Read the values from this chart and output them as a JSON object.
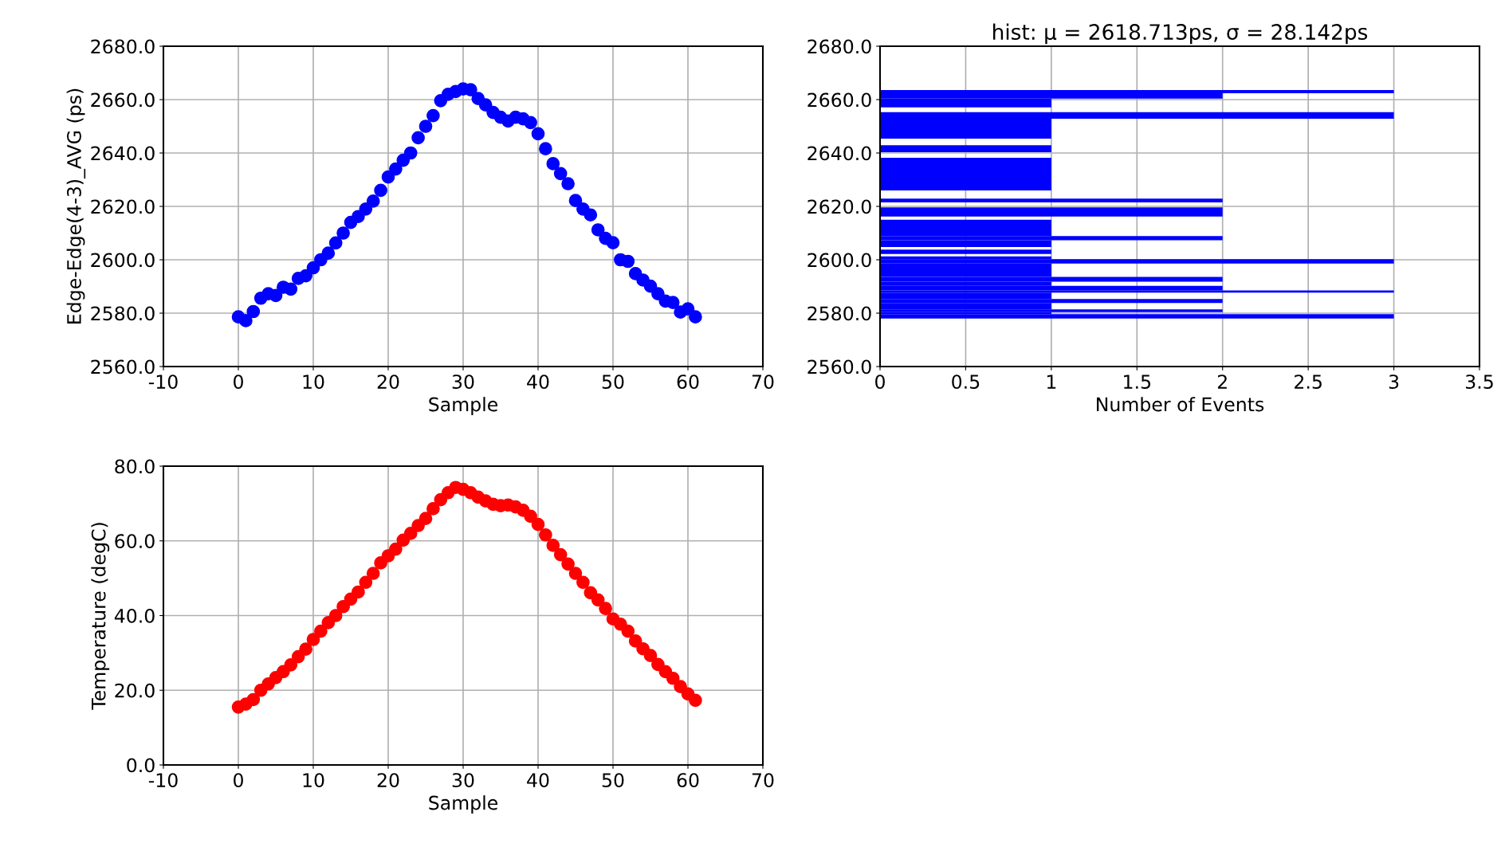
{
  "chart_data": [
    {
      "type": "scatter",
      "xlabel": "Sample",
      "ylabel": "Edge-Edge(4-3)_AVG (ps)",
      "marker": "circle",
      "grid": true,
      "xlim": [
        -10,
        70
      ],
      "xticks": [
        {
          "value": -10,
          "label": "-10"
        },
        0,
        10,
        20,
        30,
        40,
        50,
        60,
        70
      ],
      "ylim": [
        2560,
        2680
      ],
      "yticks": [
        {
          "value": 2560,
          "label": "2560.0"
        },
        {
          "value": 2580,
          "label": "2580.0"
        },
        {
          "value": 2600,
          "label": "2600.0"
        },
        {
          "value": 2620,
          "label": "2620.0"
        },
        {
          "value": 2640,
          "label": "2640.0"
        },
        {
          "value": 2660,
          "label": "2660.0"
        },
        {
          "value": 2680,
          "label": "2680.0"
        }
      ],
      "series": [
        {
          "color": "#0000ff",
          "x": [
            0,
            1,
            2,
            3,
            4,
            5,
            6,
            7,
            8,
            9,
            10,
            11,
            12,
            13,
            14,
            15,
            16,
            17,
            18,
            19,
            20,
            21,
            22,
            23,
            24,
            25,
            26,
            27,
            28,
            29,
            30,
            31,
            32,
            33,
            34,
            35,
            36,
            37,
            38,
            39,
            40,
            41,
            42,
            43,
            44,
            45,
            46,
            47,
            48,
            49,
            50,
            51,
            52,
            53,
            54,
            55,
            56,
            57,
            58,
            59,
            60,
            61
          ],
          "values": [
            2578.6,
            2577.2,
            2580.6,
            2585.6,
            2587.3,
            2586.6,
            2589.7,
            2589.0,
            2593.0,
            2594.0,
            2597.0,
            2600.0,
            2602.5,
            2606.3,
            2610.0,
            2614.0,
            2616.2,
            2619.0,
            2622.0,
            2626.0,
            2631.0,
            2634.0,
            2637.3,
            2640.0,
            2645.7,
            2650.0,
            2654.0,
            2659.6,
            2662.0,
            2663.0,
            2664.0,
            2663.7,
            2660.4,
            2658.0,
            2655.2,
            2653.4,
            2652.0,
            2653.4,
            2652.8,
            2651.4,
            2647.2,
            2641.6,
            2636.0,
            2632.3,
            2628.5,
            2622.2,
            2619.0,
            2616.8,
            2611.2,
            2608.0,
            2606.4,
            2600.0,
            2599.4,
            2594.8,
            2592.4,
            2590.1,
            2587.3,
            2584.5,
            2584.0,
            2580.4,
            2581.6,
            2578.6
          ]
        }
      ]
    },
    {
      "type": "histogram",
      "orientation": "horizontal",
      "title": "hist: μ = 2618.713ps, σ = 28.142ps",
      "xlabel": "Number of Events",
      "grid": true,
      "xlim": [
        0,
        3.5
      ],
      "xticks": [
        0,
        0.5,
        1,
        1.5,
        2,
        2.5,
        3,
        3.5
      ],
      "ylim": [
        2560,
        2680
      ],
      "yticks": [
        {
          "value": 2560,
          "label": "2560.0"
        },
        {
          "value": 2580,
          "label": "2580.0"
        },
        {
          "value": 2600,
          "label": "2600.0"
        },
        {
          "value": 2620,
          "label": "2620.0"
        },
        {
          "value": 2640,
          "label": "2640.0"
        },
        {
          "value": 2660,
          "label": "2660.0"
        },
        {
          "value": 2680,
          "label": "2680.0"
        }
      ],
      "color": "#0000ff",
      "bins": [
        2578.0,
        2579.6,
        2580.4,
        2581.4,
        2583.8,
        2585.3,
        2587.7,
        2588.5,
        2590.2,
        2591.8,
        2593.6,
        2598.6,
        2600.2,
        2601.3,
        2602.2,
        2603.8,
        2604.8,
        2607.3,
        2608.9,
        2615.0,
        2616.2,
        2619.6,
        2621.5,
        2622.9,
        2626.0,
        2638.2,
        2640.3,
        2642.9,
        2645.4,
        2652.8,
        2655.3,
        2657.1,
        2660.4,
        2662.4,
        2663.6
      ],
      "values": [
        3,
        1,
        2,
        1,
        2,
        1,
        3,
        2,
        1,
        2,
        1,
        3,
        1,
        0,
        1,
        0,
        1,
        2,
        1,
        0,
        2,
        0,
        2,
        0,
        1,
        0,
        1,
        0,
        1,
        3,
        0,
        1,
        2,
        3
      ]
    },
    {
      "type": "scatter",
      "xlabel": "Sample",
      "ylabel": "Temperature (degC)",
      "marker": "circle",
      "grid": true,
      "xlim": [
        -10,
        70
      ],
      "xticks": [
        {
          "value": -10,
          "label": "-10"
        },
        0,
        10,
        20,
        30,
        40,
        50,
        60,
        70
      ],
      "ylim": [
        0,
        80
      ],
      "yticks": [
        {
          "value": 0,
          "label": "0.0"
        },
        {
          "value": 20,
          "label": "20.0"
        },
        {
          "value": 40,
          "label": "40.0"
        },
        {
          "value": 60,
          "label": "60.0"
        },
        {
          "value": 80,
          "label": "80.0"
        }
      ],
      "series": [
        {
          "color": "#ff0000",
          "x": [
            0,
            1,
            2,
            3,
            4,
            5,
            6,
            7,
            8,
            9,
            10,
            11,
            12,
            13,
            14,
            15,
            16,
            17,
            18,
            19,
            20,
            21,
            22,
            23,
            24,
            25,
            26,
            27,
            28,
            29,
            30,
            31,
            32,
            33,
            34,
            35,
            36,
            37,
            38,
            39,
            40,
            41,
            42,
            43,
            44,
            45,
            46,
            47,
            48,
            49,
            50,
            51,
            52,
            53,
            54,
            55,
            56,
            57,
            58,
            59,
            60,
            61
          ],
          "values": [
            15.5,
            16.3,
            17.5,
            20.0,
            21.7,
            23.4,
            25.0,
            26.8,
            29.0,
            31.0,
            33.6,
            35.8,
            38.1,
            40.0,
            42.4,
            44.4,
            46.3,
            48.9,
            51.3,
            54.1,
            56.0,
            57.8,
            60.2,
            62.0,
            64.1,
            66.0,
            68.6,
            71.0,
            72.9,
            74.3,
            73.8,
            72.9,
            71.7,
            70.7,
            69.8,
            69.4,
            69.6,
            69.1,
            68.2,
            66.6,
            64.4,
            61.6,
            58.8,
            56.3,
            53.8,
            51.3,
            48.9,
            46.1,
            44.2,
            41.9,
            39.1,
            37.7,
            35.8,
            33.2,
            31.1,
            29.3,
            26.9,
            25.0,
            23.2,
            21.0,
            19.0,
            17.3
          ]
        }
      ]
    }
  ]
}
